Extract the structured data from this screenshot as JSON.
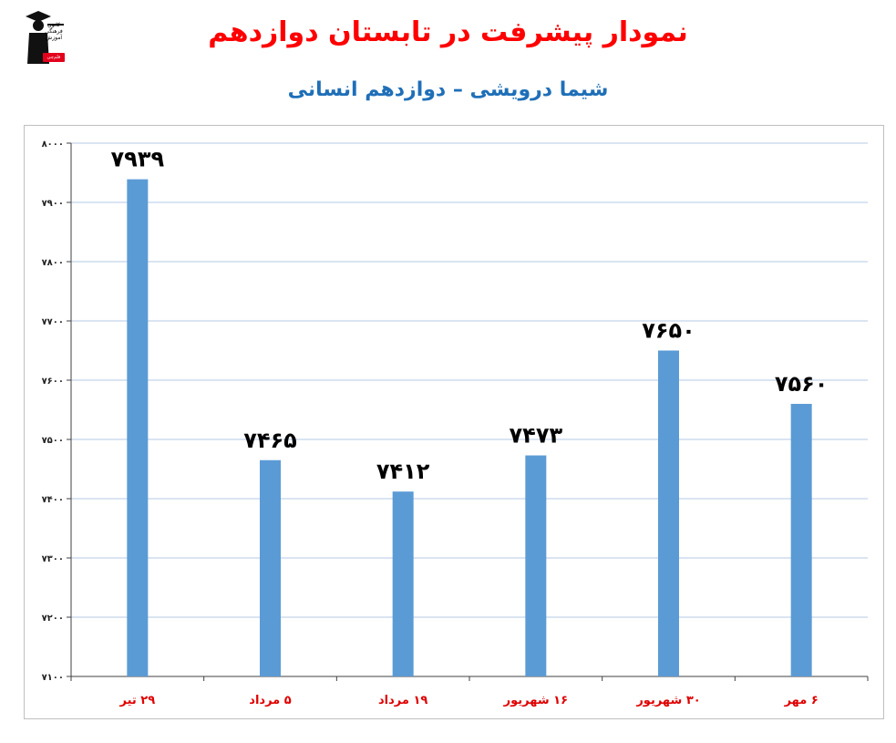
{
  "title": "نمودار پیشرفت در تابستان دوازدهم",
  "subtitle": "شیما درویشی – دوازدهم انسانی",
  "logo": {
    "lines": [
      "کانون",
      "فرهنگی",
      "آموزش"
    ],
    "badge": "قلم‌چی"
  },
  "colors": {
    "bar": "#5b9bd5",
    "title": "#ff0000",
    "subtitle": "#1f6fb8",
    "category": "#e00000",
    "grid": "#b4c8e4"
  },
  "chart_data": {
    "type": "bar",
    "categories": [
      "۲۹ تیر",
      "۵ مرداد",
      "۱۹ مرداد",
      "۱۶ شهریور",
      "۳۰ شهریور",
      "۶ مهر"
    ],
    "values": [
      7939,
      7465,
      7412,
      7473,
      7650,
      7560
    ],
    "value_labels": [
      "۷۹۳۹",
      "۷۴۶۵",
      "۷۴۱۲",
      "۷۴۷۳",
      "۷۶۵۰",
      "۷۵۶۰"
    ],
    "ylim": [
      7100,
      8000
    ],
    "yticks": [
      7100,
      7200,
      7300,
      7400,
      7500,
      7600,
      7700,
      7800,
      7900,
      8000
    ],
    "ytick_labels": [
      "۷۱۰۰",
      "۷۲۰۰",
      "۷۳۰۰",
      "۷۴۰۰",
      "۷۵۰۰",
      "۷۶۰۰",
      "۷۷۰۰",
      "۷۸۰۰",
      "۷۹۰۰",
      "۸۰۰۰"
    ],
    "grid": true,
    "xlabel": "",
    "ylabel": ""
  }
}
